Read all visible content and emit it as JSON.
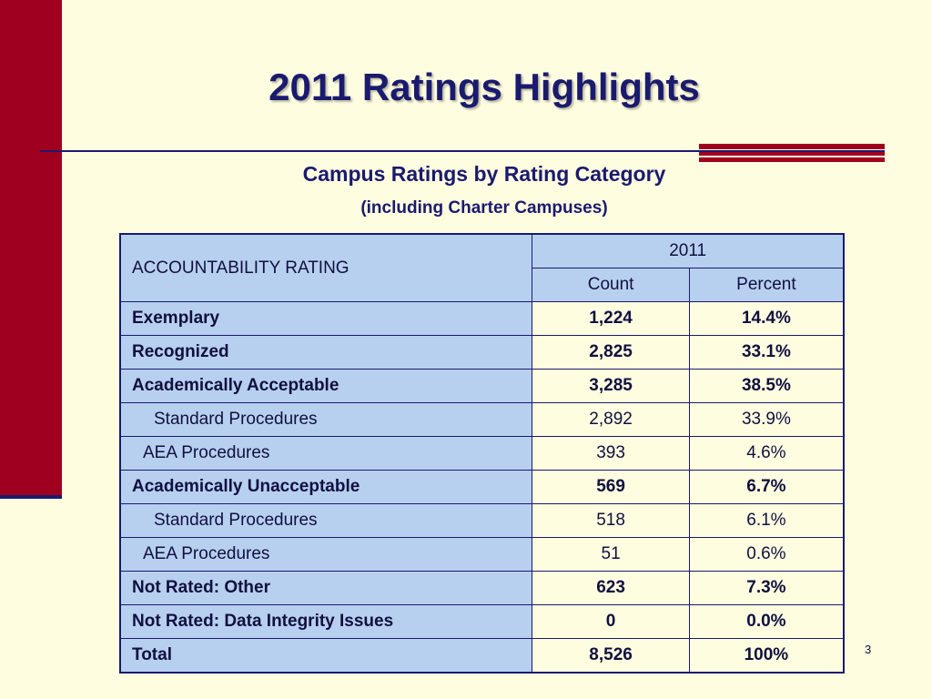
{
  "slide": {
    "title": "2011 Ratings Highlights",
    "subtitle": "Campus Ratings by Rating Category",
    "subtitle_note": "(including Charter Campuses)",
    "page_number": "3"
  },
  "table": {
    "header": {
      "rating_label": "ACCOUNTABILITY RATING",
      "year": "2011",
      "count_label": "Count",
      "percent_label": "Percent"
    },
    "rows": [
      {
        "label": "Exemplary",
        "count": "1,224",
        "percent": "14.4%"
      },
      {
        "label": "Recognized",
        "count": "2,825",
        "percent": "33.1%"
      },
      {
        "label": "Academically Acceptable",
        "count": "3,285",
        "percent": "38.5%"
      },
      {
        "label": "Standard Procedures",
        "count": "2,892",
        "percent": "33.9%"
      },
      {
        "label": "AEA Procedures",
        "count": "393",
        "percent": "4.6%"
      },
      {
        "label": "Academically Unacceptable",
        "count": "569",
        "percent": "6.7%"
      },
      {
        "label": "Standard Procedures",
        "count": "518",
        "percent": "6.1%"
      },
      {
        "label": "AEA Procedures",
        "count": "51",
        "percent": "0.6%"
      },
      {
        "label": "Not Rated: Other",
        "count": "623",
        "percent": "7.3%"
      },
      {
        "label": "Not Rated: Data Integrity Issues",
        "count": "0",
        "percent": "0.0%"
      },
      {
        "label": "Total",
        "count": "8,526",
        "percent": "100%"
      }
    ]
  },
  "colors": {
    "background": "#fffde0",
    "accent_red": "#a00020",
    "navy": "#1a1a6e",
    "header_blue": "#b8d0f0"
  }
}
